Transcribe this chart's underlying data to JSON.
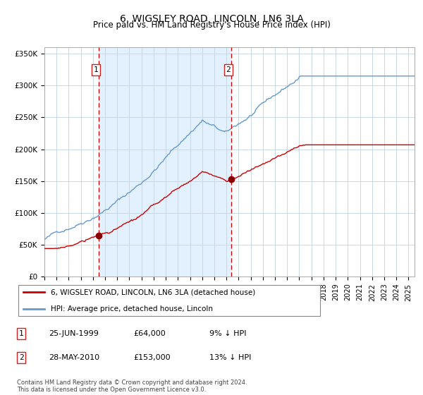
{
  "title": "6, WIGSLEY ROAD, LINCOLN, LN6 3LA",
  "subtitle": "Price paid vs. HM Land Registry's House Price Index (HPI)",
  "ylim": [
    0,
    360000
  ],
  "yticks": [
    0,
    50000,
    100000,
    150000,
    200000,
    250000,
    300000,
    350000
  ],
  "ytick_labels": [
    "£0",
    "£50K",
    "£100K",
    "£150K",
    "£200K",
    "£250K",
    "£300K",
    "£350K"
  ],
  "sale1_year": 1999.48,
  "sale1_price": 64000,
  "sale2_year": 2010.41,
  "sale2_price": 153000,
  "legend_line1": "6, WIGSLEY ROAD, LINCOLN, LN6 3LA (detached house)",
  "legend_line2": "HPI: Average price, detached house, Lincoln",
  "table_row1_date": "25-JUN-1999",
  "table_row1_price": "£64,000",
  "table_row1_hpi": "9% ↓ HPI",
  "table_row2_date": "28-MAY-2010",
  "table_row2_price": "£153,000",
  "table_row2_hpi": "13% ↓ HPI",
  "footer": "Contains HM Land Registry data © Crown copyright and database right 2024.\nThis data is licensed under the Open Government Licence v3.0.",
  "line_red_color": "#cc0000",
  "line_blue_color": "#6699cc",
  "bg_shade_color": "#ddeeff",
  "grid_color": "#c8d8e8",
  "vline_color": "#cc0000",
  "title_fontsize": 10,
  "subtitle_fontsize": 8.5,
  "tick_fontsize": 7.5,
  "legend_fontsize": 7.5,
  "table_fontsize": 8,
  "footer_fontsize": 6
}
